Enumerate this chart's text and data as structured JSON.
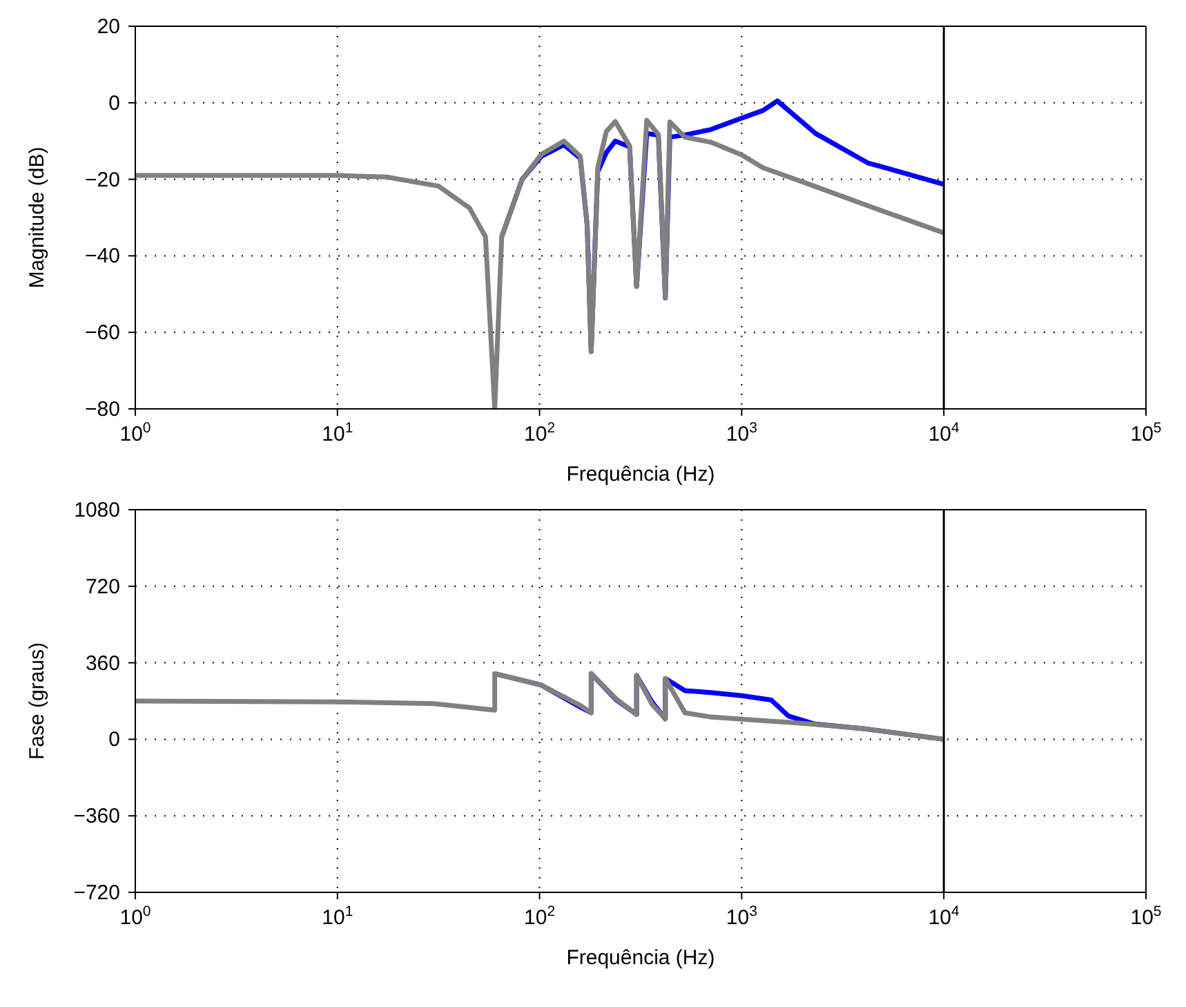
{
  "chart_data": [
    {
      "type": "line",
      "xlabel": "Frequência (Hz)",
      "ylabel": "Magnitude (dB)",
      "log": "x",
      "grid": true,
      "marker": "none",
      "line_style": "solid",
      "x": [
        1,
        10,
        17.5,
        31.7,
        45,
        54,
        60,
        65,
        82,
        102,
        132,
        159,
        172,
        180,
        194,
        214,
        237,
        279,
        302,
        339,
        387,
        419,
        441,
        524,
        703,
        1000,
        1276,
        1500,
        2317,
        4200,
        10000
      ],
      "series": [
        {
          "color": "#0000ff",
          "values": [
            null,
            null,
            null,
            null,
            null,
            null,
            null,
            -35,
            -20,
            -14,
            -11,
            -14.5,
            -32,
            -65,
            -18,
            -13,
            -10,
            -11.5,
            -48,
            -8,
            -8.5,
            -51,
            -9,
            -8.4,
            -7,
            -4,
            -2,
            0.5,
            -8,
            -15.7,
            -21.3
          ]
        },
        {
          "color": "#808080",
          "values": [
            -19,
            -19,
            -19.4,
            -21.8,
            -27.5,
            -35,
            -80,
            -35,
            -20,
            -13.5,
            -10,
            -14,
            -32,
            -65,
            -17,
            -7.5,
            -4.9,
            -11.3,
            -48,
            -4.6,
            -8.3,
            -51,
            -5,
            -9,
            -10.3,
            -13.6,
            -17,
            -18.3,
            -21.9,
            -26.9,
            -34
          ]
        }
      ],
      "xlim": [
        1,
        100000
      ],
      "xticks": [
        {
          "value": 1,
          "label": "10$^{0}$"
        },
        {
          "value": 10,
          "label": "10$^{1}$"
        },
        {
          "value": 100,
          "label": "10$^{2}$"
        },
        {
          "value": 1000,
          "label": "10$^{3}$"
        },
        {
          "value": 10000,
          "label": "10$^{4}$"
        },
        {
          "value": 100000,
          "label": "10$^{5}$"
        }
      ],
      "ylim": [
        -80,
        20
      ],
      "yticks": [
        {
          "value": -80,
          "label": "−80"
        },
        {
          "value": -60,
          "label": "−60"
        },
        {
          "value": -40,
          "label": "−40"
        },
        {
          "value": -20,
          "label": "−20"
        },
        0,
        20
      ],
      "ref_lines": [
        {
          "axis": "x",
          "value": 10000,
          "color": "#000000"
        }
      ]
    },
    {
      "type": "line",
      "xlabel": "Frequência (Hz)",
      "ylabel": "Fase (graus)",
      "log": "x",
      "grid": true,
      "marker": "none",
      "line_style": "solid",
      "x": [
        1,
        10,
        30,
        60,
        60,
        102,
        160,
        180,
        180,
        240,
        302,
        302,
        360,
        419,
        419,
        524,
        703,
        1000,
        1400,
        1700,
        2300,
        4000,
        10000
      ],
      "series": [
        {
          "color": "#0000ff",
          "values": [
            null,
            null,
            null,
            null,
            309,
            255,
            150,
            125,
            309,
            185,
            117,
            300,
            175,
            96,
            286,
            229,
            220,
            205,
            185,
            110,
            72,
            50,
            0
          ]
        },
        {
          "color": "#808080",
          "values": [
            180,
            176,
            168,
            137,
            309,
            255,
            158,
            125,
            309,
            189,
            117,
            300,
            165,
            96,
            286,
            125,
            105,
            95,
            85,
            80,
            70,
            50,
            0
          ]
        }
      ],
      "xlim": [
        1,
        100000
      ],
      "xticks": [
        {
          "value": 1,
          "label": "10$^{0}$"
        },
        {
          "value": 10,
          "label": "10$^{1}$"
        },
        {
          "value": 100,
          "label": "10$^{2}$"
        },
        {
          "value": 1000,
          "label": "10$^{3}$"
        },
        {
          "value": 10000,
          "label": "10$^{4}$"
        },
        {
          "value": 100000,
          "label": "10$^{5}$"
        }
      ],
      "ylim": [
        -720,
        1080
      ],
      "yticks": [
        {
          "value": -720,
          "label": "−720"
        },
        {
          "value": -360,
          "label": "−360"
        },
        0,
        360,
        720,
        1080
      ],
      "ref_lines": [
        {
          "axis": "x",
          "value": 10000,
          "color": "#000000"
        }
      ]
    }
  ]
}
